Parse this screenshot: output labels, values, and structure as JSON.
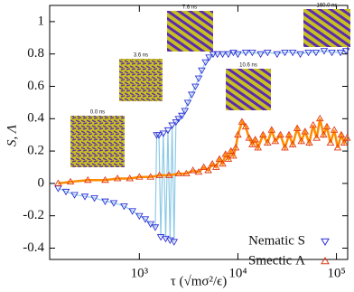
{
  "chart_data": {
    "type": "line",
    "xlabel": "τ (√mσ²/ϵ)",
    "ylabel": "S, Λ",
    "xscale": "log",
    "xlim": [
      123,
      130000
    ],
    "ylim": [
      -0.47,
      1.1
    ],
    "xticks": [
      {
        "value": 1000,
        "label": "10³"
      },
      {
        "value": 10000,
        "label": "10⁴"
      },
      {
        "value": 100000,
        "label": "10⁵"
      }
    ],
    "yticks": [
      -0.4,
      -0.2,
      0,
      0.2,
      0.4,
      0.6,
      0.8,
      1
    ],
    "legend": "lower right",
    "series": [
      {
        "name": "Nematic S",
        "color": "#2f2fd8",
        "line_color": "#8ecae6",
        "marker": "triangle-down",
        "x": [
          150,
          180,
          220,
          280,
          350,
          450,
          550,
          700,
          850,
          1000,
          1150,
          1300,
          1450,
          1500,
          1580,
          1650,
          1750,
          1850,
          1950,
          2050,
          2150,
          2250,
          2350,
          2500,
          2700,
          2900,
          3100,
          3400,
          3700,
          4000,
          4300,
          4700,
          5100,
          5600,
          6200,
          7000,
          8000,
          9000,
          10000,
          12000,
          14000,
          17000,
          20000,
          25000,
          30000,
          36000,
          43000,
          52000,
          62000,
          75000,
          90000,
          110000,
          125000
        ],
        "values": [
          -0.03,
          -0.05,
          -0.07,
          -0.08,
          -0.09,
          -0.11,
          -0.12,
          -0.14,
          -0.17,
          -0.2,
          -0.22,
          -0.25,
          -0.27,
          0.3,
          0.3,
          -0.33,
          0.31,
          -0.34,
          0.33,
          -0.35,
          0.36,
          -0.36,
          0.38,
          0.4,
          0.42,
          0.45,
          0.5,
          0.55,
          0.6,
          0.65,
          0.7,
          0.75,
          0.78,
          0.8,
          0.8,
          0.8,
          0.8,
          0.81,
          0.8,
          0.81,
          0.81,
          0.8,
          0.81,
          0.8,
          0.81,
          0.81,
          0.8,
          0.81,
          0.81,
          0.82,
          0.81,
          0.81,
          0.82
        ]
      },
      {
        "name": "Smectic Λ",
        "color": "#e0391a",
        "line_color": "#ff8c00",
        "marker": "triangle-up",
        "x": [
          150,
          200,
          300,
          450,
          600,
          800,
          1000,
          1300,
          1600,
          2000,
          2500,
          3000,
          3500,
          4000,
          4500,
          5000,
          5500,
          6000,
          6500,
          7000,
          7500,
          8000,
          8500,
          9000,
          9500,
          10000,
          11000,
          12000,
          13000,
          14000,
          15000,
          16000,
          18000,
          20000,
          22000,
          24000,
          27000,
          30000,
          33000,
          36000,
          40000,
          44000,
          48000,
          53000,
          58000,
          63000,
          68000,
          74000,
          80000,
          87000,
          95000,
          103000,
          112000,
          120000,
          128000
        ],
        "values": [
          0.0,
          0.01,
          0.02,
          0.02,
          0.03,
          0.03,
          0.04,
          0.04,
          0.05,
          0.05,
          0.06,
          0.06,
          0.08,
          0.07,
          0.1,
          0.08,
          0.12,
          0.1,
          0.15,
          0.12,
          0.18,
          0.15,
          0.2,
          0.17,
          0.22,
          0.3,
          0.38,
          0.35,
          0.28,
          0.24,
          0.27,
          0.22,
          0.3,
          0.25,
          0.33,
          0.26,
          0.3,
          0.22,
          0.3,
          0.24,
          0.34,
          0.26,
          0.32,
          0.25,
          0.36,
          0.28,
          0.4,
          0.3,
          0.35,
          0.25,
          0.33,
          0.22,
          0.3,
          0.25,
          0.28
        ]
      }
    ],
    "annotations": [
      "0.0 ns",
      "3.6 ns",
      "7.6 ns",
      "10.6 ns",
      "160.0 ns"
    ]
  }
}
